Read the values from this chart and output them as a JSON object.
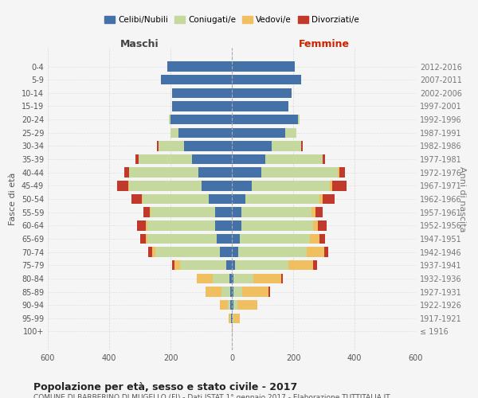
{
  "age_groups": [
    "100+",
    "95-99",
    "90-94",
    "85-89",
    "80-84",
    "75-79",
    "70-74",
    "65-69",
    "60-64",
    "55-59",
    "50-54",
    "45-49",
    "40-44",
    "35-39",
    "30-34",
    "25-29",
    "20-24",
    "15-19",
    "10-14",
    "5-9",
    "0-4"
  ],
  "birth_years": [
    "≤ 1916",
    "1917-1921",
    "1922-1926",
    "1927-1931",
    "1932-1936",
    "1937-1941",
    "1942-1946",
    "1947-1951",
    "1952-1956",
    "1957-1961",
    "1962-1966",
    "1967-1971",
    "1972-1976",
    "1977-1981",
    "1982-1986",
    "1987-1991",
    "1992-1996",
    "1997-2001",
    "2002-2006",
    "2007-2011",
    "2012-2016"
  ],
  "maschi": {
    "celibi": [
      0,
      2,
      4,
      5,
      8,
      18,
      40,
      50,
      55,
      55,
      75,
      100,
      110,
      130,
      155,
      175,
      200,
      195,
      195,
      230,
      210
    ],
    "coniugati": [
      0,
      3,
      10,
      30,
      55,
      150,
      210,
      225,
      220,
      210,
      215,
      235,
      225,
      175,
      85,
      25,
      5,
      0,
      0,
      0,
      0
    ],
    "vedovi": [
      0,
      5,
      25,
      50,
      50,
      20,
      10,
      5,
      5,
      3,
      3,
      3,
      0,
      0,
      0,
      0,
      0,
      0,
      0,
      0,
      0
    ],
    "divorziati": [
      0,
      0,
      0,
      0,
      0,
      8,
      12,
      20,
      30,
      20,
      35,
      35,
      15,
      8,
      5,
      0,
      0,
      0,
      0,
      0,
      0
    ]
  },
  "femmine": {
    "nubili": [
      0,
      2,
      4,
      5,
      5,
      10,
      20,
      25,
      30,
      30,
      45,
      65,
      95,
      110,
      130,
      175,
      215,
      185,
      195,
      225,
      205
    ],
    "coniugate": [
      0,
      3,
      15,
      30,
      65,
      175,
      225,
      230,
      235,
      230,
      240,
      255,
      250,
      185,
      95,
      35,
      5,
      0,
      0,
      0,
      0
    ],
    "vedove": [
      2,
      20,
      65,
      85,
      90,
      80,
      55,
      30,
      15,
      12,
      10,
      8,
      5,
      0,
      0,
      0,
      0,
      0,
      0,
      0,
      0
    ],
    "divorziate": [
      0,
      0,
      0,
      5,
      5,
      12,
      15,
      20,
      30,
      25,
      40,
      45,
      20,
      8,
      5,
      0,
      0,
      0,
      0,
      0,
      0
    ]
  },
  "colors": {
    "celibi": "#4472a8",
    "coniugati": "#c5d89e",
    "vedovi": "#f0c060",
    "divorziati": "#c0392b"
  },
  "legend_labels": [
    "Celibi/Nubili",
    "Coniugati/e",
    "Vedovi/e",
    "Divorziati/e"
  ],
  "title": "Popolazione per età, sesso e stato civile - 2017",
  "subtitle": "COMUNE DI BARBERINO DI MUGELLO (FI) - Dati ISTAT 1° gennaio 2017 - Elaborazione TUTTITALIA.IT",
  "xlabel_left": "Maschi",
  "xlabel_right": "Femmine",
  "ylabel_left": "Fasce di età",
  "ylabel_right": "Anni di nascita",
  "xlim": 600,
  "background_color": "#f5f5f5"
}
